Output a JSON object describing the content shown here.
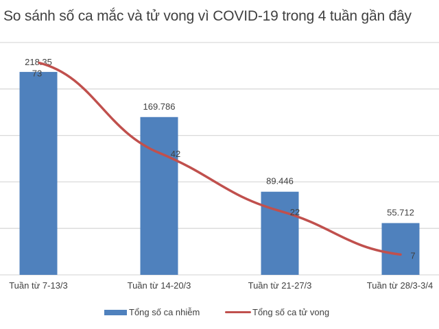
{
  "title": "So sánh số ca mắc và tử vong vì COVID-19 trong 4 tuần gần đây",
  "colors": {
    "bar": "#4f81bd",
    "line": "#c0504d",
    "grid": "#d9d9d9",
    "text": "#404040"
  },
  "legend": {
    "bar_label": "Tổng số ca nhiễm",
    "line_label": "Tổng số ca tử vong"
  },
  "chart_data": {
    "type": "bar+line",
    "title": "So sánh số ca mắc và tử vong vì COVID-19 trong 4 tuần gần đây",
    "categories": [
      "Tuần từ 7-13/3",
      "Tuần từ 14-20/3",
      "Tuần  từ 21-27/3",
      "Tuần từ 28/3-3/4"
    ],
    "series": [
      {
        "name": "Tổng số ca nhiễm",
        "type": "bar",
        "axis": "primary",
        "values": [
          218.35,
          169.786,
          89.446,
          55.712
        ],
        "labels": [
          "218.35",
          "169.786",
          "89.446",
          "55.712"
        ]
      },
      {
        "name": "Tổng số ca tử vong",
        "type": "line",
        "axis": "secondary",
        "values": [
          73,
          42,
          22,
          7
        ],
        "labels": [
          "73",
          "42",
          "22",
          "7"
        ]
      }
    ],
    "xlabel": "",
    "ylabel": "",
    "ylim": [
      0,
      250
    ],
    "y2lim": [
      0,
      80
    ],
    "grid": true,
    "axis_tick_labels_visible": false,
    "legend_position": "bottom"
  }
}
